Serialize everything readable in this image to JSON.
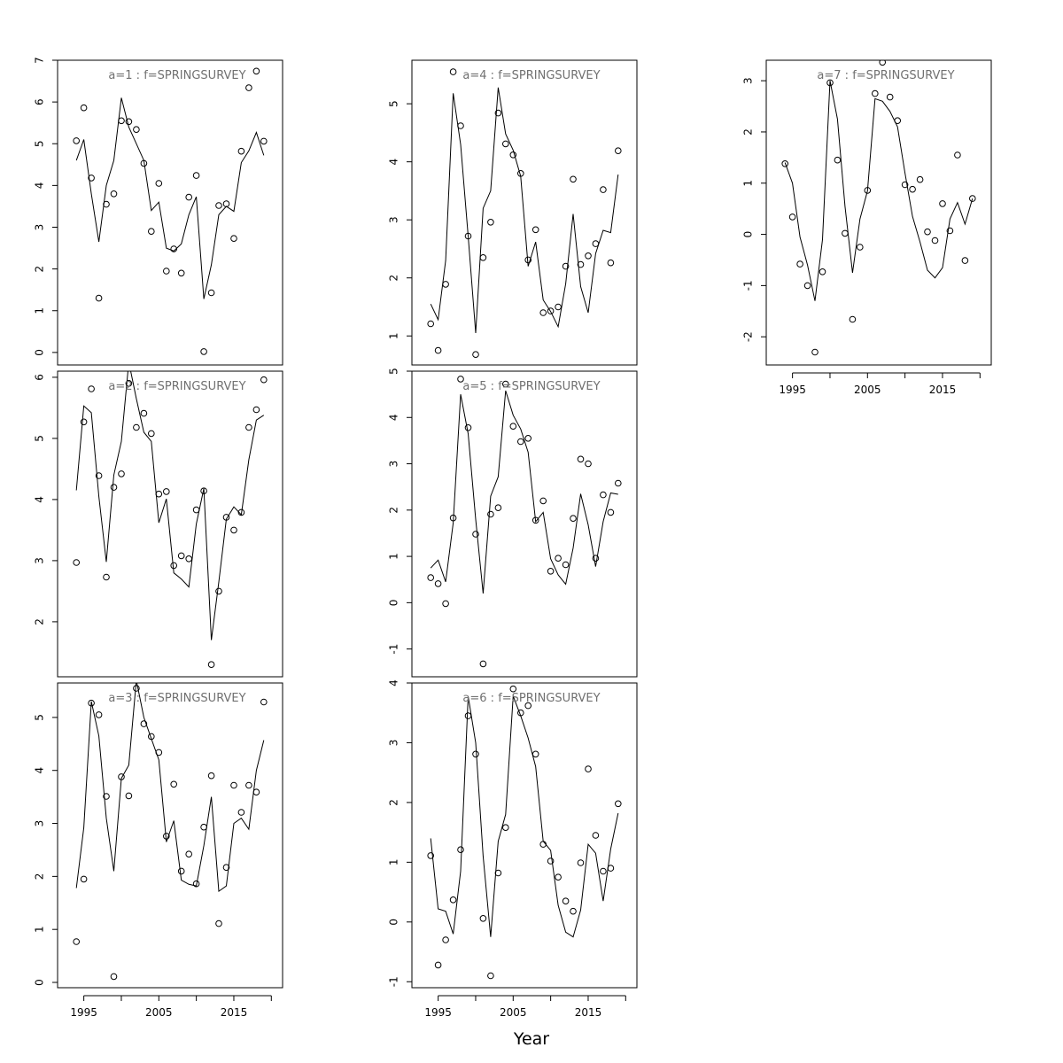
{
  "figure": {
    "xlabel": "Year"
  },
  "chart_data": [
    {
      "type": "scatter",
      "title": "a=1  :  f=SPRINGSURVEY",
      "xlim": [
        1991.5,
        2021.5
      ],
      "ylim": [
        -0.3,
        7.0
      ],
      "yticks": [
        0,
        1,
        2,
        3,
        4,
        5,
        6,
        7
      ],
      "xticks": [
        1995,
        2005,
        2015
      ],
      "show_x_labels": false,
      "x": [
        1994,
        1995,
        1996,
        1997,
        1998,
        1999,
        2000,
        2001,
        2002,
        2003,
        2004,
        2005,
        2006,
        2007,
        2008,
        2009,
        2010,
        2011,
        2012,
        2013,
        2014,
        2015,
        2016,
        2017,
        2018,
        2019
      ],
      "observed": [
        5.07,
        5.86,
        4.18,
        1.3,
        3.55,
        3.8,
        5.55,
        5.53,
        5.34,
        4.53,
        2.9,
        4.05,
        1.95,
        2.48,
        1.9,
        3.72,
        4.24,
        0.02,
        1.43,
        3.52,
        3.56,
        2.73,
        4.82,
        6.34,
        6.74,
        5.06
      ],
      "fitted": [
        4.6,
        5.1,
        3.8,
        2.65,
        4.0,
        4.6,
        6.1,
        5.4,
        5.0,
        4.6,
        3.4,
        3.6,
        2.5,
        2.43,
        2.6,
        3.3,
        3.73,
        1.28,
        2.1,
        3.3,
        3.5,
        3.38,
        4.55,
        4.83,
        5.27,
        4.72
      ]
    },
    {
      "type": "scatter",
      "title": "a=2  :  f=SPRINGSURVEY",
      "xlim": [
        1991.5,
        2021.5
      ],
      "ylim": [
        1.1,
        6.1
      ],
      "yticks": [
        2,
        3,
        4,
        5,
        6
      ],
      "xticks": [
        1995,
        2005,
        2015
      ],
      "show_x_labels": false,
      "x": [
        1994,
        1995,
        1996,
        1997,
        1998,
        1999,
        2000,
        2001,
        2002,
        2003,
        2004,
        2005,
        2006,
        2007,
        2008,
        2009,
        2010,
        2011,
        2012,
        2013,
        2014,
        2015,
        2016,
        2017,
        2018,
        2019
      ],
      "observed": [
        2.97,
        5.27,
        5.81,
        4.39,
        2.73,
        4.2,
        4.42,
        5.9,
        5.18,
        5.41,
        5.08,
        4.09,
        4.13,
        2.92,
        3.08,
        3.03,
        3.83,
        4.14,
        1.3,
        2.5,
        3.71,
        3.5,
        3.79,
        5.18,
        5.47,
        5.96
      ],
      "fitted": [
        4.15,
        5.53,
        5.42,
        4.05,
        2.98,
        4.4,
        4.95,
        6.25,
        5.65,
        5.1,
        4.95,
        3.62,
        4.01,
        2.8,
        2.7,
        2.57,
        3.6,
        4.18,
        1.7,
        2.65,
        3.68,
        3.88,
        3.75,
        4.65,
        5.3,
        5.38
      ]
    },
    {
      "type": "scatter",
      "title": "a=3  :  f=SPRINGSURVEY",
      "xlim": [
        1991.5,
        2021.5
      ],
      "ylim": [
        -0.1,
        5.65
      ],
      "yticks": [
        0,
        1,
        2,
        3,
        4,
        5
      ],
      "xticks": [
        1995,
        2005,
        2015
      ],
      "show_x_labels": true,
      "x": [
        1994,
        1995,
        1996,
        1997,
        1998,
        1999,
        2000,
        2001,
        2002,
        2003,
        2004,
        2005,
        2006,
        2007,
        2008,
        2009,
        2010,
        2011,
        2012,
        2013,
        2014,
        2015,
        2016,
        2017,
        2018,
        2019
      ],
      "observed": [
        0.77,
        1.95,
        5.27,
        5.05,
        3.51,
        0.11,
        3.88,
        3.52,
        5.55,
        4.88,
        4.64,
        4.34,
        2.76,
        3.74,
        2.1,
        2.42,
        1.86,
        2.93,
        3.9,
        1.11,
        2.17,
        3.72,
        3.21,
        3.72,
        3.59,
        5.29
      ],
      "fitted": [
        1.78,
        2.92,
        5.3,
        4.65,
        3.1,
        2.1,
        3.85,
        4.1,
        5.7,
        5.0,
        4.6,
        4.2,
        2.65,
        3.05,
        1.93,
        1.85,
        1.82,
        2.58,
        3.5,
        1.72,
        1.82,
        3.0,
        3.1,
        2.89,
        4.0,
        4.57
      ]
    },
    {
      "type": "scatter",
      "title": "a=4  :  f=SPRINGSURVEY",
      "xlim": [
        1991.5,
        2021.5
      ],
      "ylim": [
        0.5,
        5.75
      ],
      "yticks": [
        1,
        2,
        3,
        4,
        5
      ],
      "xticks": [
        1995,
        2005,
        2015
      ],
      "show_x_labels": false,
      "x": [
        1994,
        1995,
        1996,
        1997,
        1998,
        1999,
        2000,
        2001,
        2002,
        2003,
        2004,
        2005,
        2006,
        2007,
        2008,
        2009,
        2010,
        2011,
        2012,
        2013,
        2014,
        2015,
        2016,
        2017,
        2018,
        2019
      ],
      "observed": [
        1.21,
        0.75,
        1.89,
        5.55,
        4.62,
        2.72,
        0.68,
        2.35,
        2.96,
        4.84,
        4.31,
        4.12,
        3.8,
        2.31,
        2.83,
        1.4,
        1.43,
        1.5,
        2.2,
        3.7,
        2.23,
        2.38,
        2.59,
        3.52,
        2.26,
        4.19
      ],
      "fitted": [
        1.55,
        1.28,
        2.3,
        5.18,
        4.3,
        2.72,
        1.05,
        3.2,
        3.5,
        5.28,
        4.48,
        4.2,
        3.75,
        2.2,
        2.62,
        1.62,
        1.42,
        1.16,
        1.9,
        3.1,
        1.85,
        1.4,
        2.42,
        2.82,
        2.78,
        3.78
      ]
    },
    {
      "type": "scatter",
      "title": "a=5  :  f=SPRINGSURVEY",
      "xlim": [
        1991.5,
        2021.5
      ],
      "ylim": [
        -1.6,
        5.0
      ],
      "yticks": [
        -1,
        0,
        1,
        2,
        3,
        4,
        5
      ],
      "xticks": [
        1995,
        2005,
        2015
      ],
      "show_x_labels": false,
      "x": [
        1994,
        1995,
        1996,
        1997,
        1998,
        1999,
        2000,
        2001,
        2002,
        2003,
        2004,
        2005,
        2006,
        2007,
        2008,
        2009,
        2010,
        2011,
        2012,
        2013,
        2014,
        2015,
        2016,
        2017,
        2018,
        2019
      ],
      "observed": [
        0.54,
        0.41,
        -0.02,
        1.83,
        4.83,
        3.78,
        1.48,
        -1.32,
        1.91,
        2.05,
        4.72,
        3.81,
        3.48,
        3.55,
        1.78,
        2.2,
        0.68,
        0.96,
        0.82,
        1.82,
        3.1,
        3.0,
        0.96,
        2.33,
        1.95,
        2.58
      ],
      "fitted": [
        0.75,
        0.92,
        0.45,
        1.72,
        4.5,
        3.65,
        1.8,
        0.2,
        2.3,
        2.72,
        4.58,
        4.05,
        3.75,
        3.25,
        1.75,
        1.95,
        0.95,
        0.6,
        0.4,
        1.18,
        2.35,
        1.68,
        0.78,
        1.75,
        2.37,
        2.34
      ]
    },
    {
      "type": "scatter",
      "title": "a=6  :  f=SPRINGSURVEY",
      "xlim": [
        1991.5,
        2021.5
      ],
      "ylim": [
        -1.1,
        4.0
      ],
      "yticks": [
        -1,
        0,
        1,
        2,
        3,
        4
      ],
      "xticks": [
        1995,
        2005,
        2015
      ],
      "show_x_labels": true,
      "x": [
        1994,
        1995,
        1996,
        1997,
        1998,
        1999,
        2000,
        2001,
        2002,
        2003,
        2004,
        2005,
        2006,
        2007,
        2008,
        2009,
        2010,
        2011,
        2012,
        2013,
        2014,
        2015,
        2016,
        2017,
        2018,
        2019
      ],
      "observed": [
        1.11,
        -0.72,
        -0.3,
        0.37,
        1.21,
        3.45,
        2.81,
        0.06,
        -0.9,
        0.82,
        1.58,
        3.9,
        3.5,
        3.62,
        2.81,
        1.3,
        1.02,
        0.75,
        0.35,
        0.18,
        0.99,
        2.56,
        1.45,
        0.85,
        0.9,
        1.98
      ],
      "fitted": [
        1.4,
        0.22,
        0.18,
        -0.2,
        0.85,
        3.78,
        3.0,
        1.1,
        -0.25,
        1.35,
        1.8,
        3.78,
        3.45,
        3.08,
        2.6,
        1.35,
        1.2,
        0.28,
        -0.17,
        -0.25,
        0.2,
        1.3,
        1.15,
        0.35,
        1.22,
        1.82
      ]
    },
    {
      "type": "scatter",
      "title": "a=7  :  f=SPRINGSURVEY",
      "xlim": [
        1991.5,
        2021.5
      ],
      "ylim": [
        -2.55,
        3.4
      ],
      "yticks": [
        -2,
        -1,
        0,
        1,
        2,
        3
      ],
      "xticks": [
        1995,
        2005,
        2015
      ],
      "show_x_labels": true,
      "x": [
        1994,
        1995,
        1996,
        1997,
        1998,
        1999,
        2000,
        2001,
        2002,
        2003,
        2004,
        2005,
        2006,
        2007,
        2008,
        2009,
        2010,
        2011,
        2012,
        2013,
        2014,
        2015,
        2016,
        2017,
        2018,
        2019
      ],
      "observed": [
        1.38,
        0.34,
        -0.58,
        -1.0,
        -2.3,
        -0.73,
        2.96,
        1.45,
        0.02,
        -1.66,
        -0.25,
        0.86,
        2.75,
        3.36,
        2.68,
        2.22,
        0.97,
        0.88,
        1.07,
        0.05,
        -0.12,
        0.6,
        0.07,
        1.55,
        -0.51,
        0.7
      ],
      "fitted": [
        1.4,
        1.0,
        -0.05,
        -0.6,
        -1.3,
        -0.1,
        3.0,
        2.25,
        0.55,
        -0.75,
        0.3,
        0.85,
        2.65,
        2.6,
        2.4,
        2.1,
        1.2,
        0.35,
        -0.15,
        -0.7,
        -0.85,
        -0.65,
        0.3,
        0.62,
        0.2,
        0.7
      ]
    }
  ]
}
